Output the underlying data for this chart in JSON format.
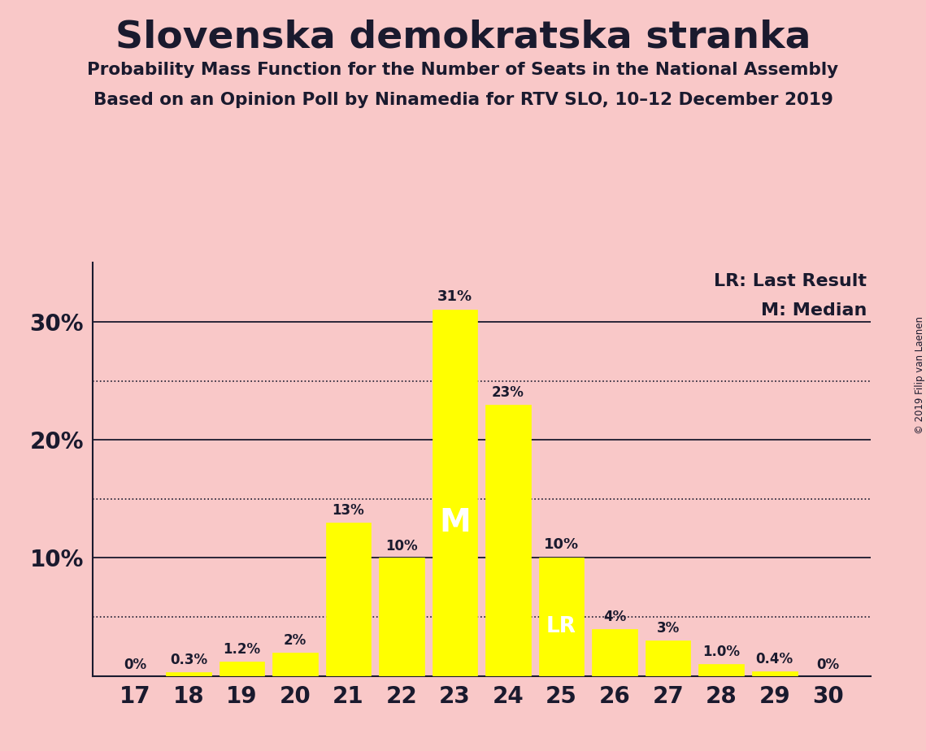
{
  "title": "Slovenska demokratska stranka",
  "subtitle1": "Probability Mass Function for the Number of Seats in the National Assembly",
  "subtitle2": "Based on an Opinion Poll by Ninamedia for RTV SLO, 10–12 December 2019",
  "categories": [
    17,
    18,
    19,
    20,
    21,
    22,
    23,
    24,
    25,
    26,
    27,
    28,
    29,
    30
  ],
  "values": [
    0.0,
    0.3,
    1.2,
    2.0,
    13.0,
    10.0,
    31.0,
    23.0,
    10.0,
    4.0,
    3.0,
    1.0,
    0.4,
    0.0
  ],
  "labels": [
    "0%",
    "0.3%",
    "1.2%",
    "2%",
    "13%",
    "10%",
    "31%",
    "23%",
    "10%",
    "4%",
    "3%",
    "1.0%",
    "0.4%",
    "0%"
  ],
  "bar_color": "#FFFF00",
  "background_color": "#F9C8C8",
  "text_color": "#1a1a2e",
  "median_seat": 23,
  "last_result_seat": 25,
  "ylim": [
    0,
    35
  ],
  "dotted_lines": [
    5,
    15,
    25
  ],
  "solid_lines": [
    10,
    20,
    30
  ],
  "legend_lr": "LR: Last Result",
  "legend_m": "M: Median",
  "copyright": "© 2019 Filip van Laenen"
}
